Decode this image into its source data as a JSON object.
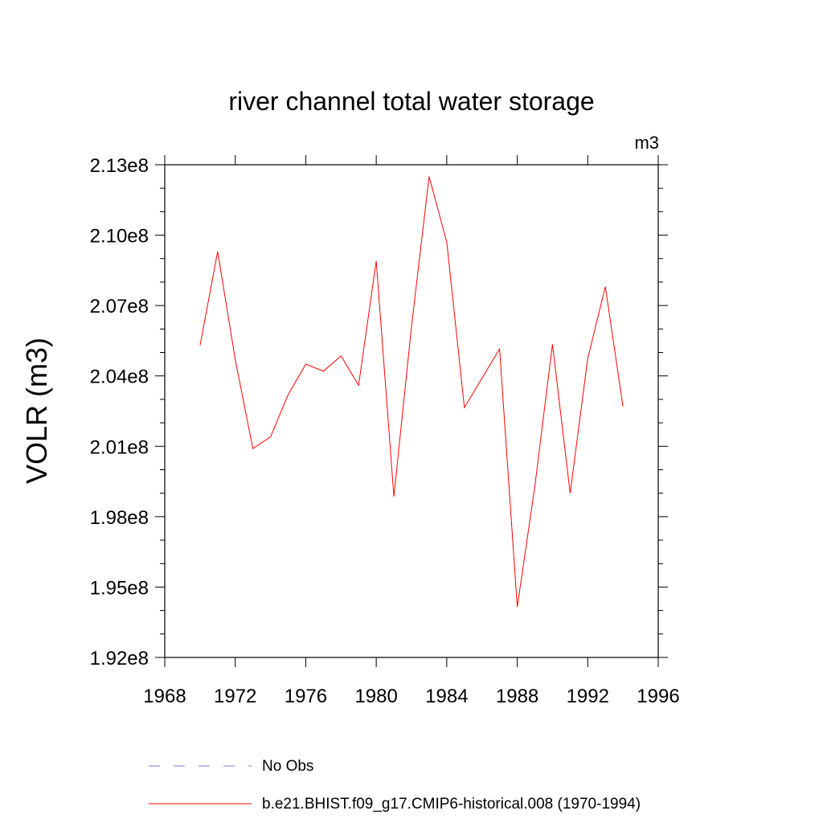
{
  "chart_data": {
    "type": "line",
    "title": "river channel total water storage",
    "units_label": "m3",
    "ylabel": "VOLR  (m3)",
    "xlabel": "",
    "xlim": [
      1968,
      1996
    ],
    "ylim": [
      192000000,
      213000000
    ],
    "x_ticks": [
      1968,
      1972,
      1976,
      1980,
      1984,
      1988,
      1992,
      1996
    ],
    "x_tick_labels": [
      "1968",
      "1972",
      "1976",
      "1980",
      "1984",
      "1988",
      "1992",
      "1996"
    ],
    "y_ticks": [
      192000000,
      195000000,
      198000000,
      201000000,
      204000000,
      207000000,
      210000000,
      213000000
    ],
    "y_tick_labels": [
      "1.92e8",
      "1.95e8",
      "1.98e8",
      "2.01e8",
      "2.04e8",
      "2.07e8",
      "2.10e8",
      "2.13e8"
    ],
    "grid": false,
    "legend_position": "bottom",
    "legend": [
      {
        "name": "No Obs",
        "color": "#7a7acc",
        "style": "dashed"
      },
      {
        "name": "b.e21.BHIST.f09_g17.CMIP6-historical.008 (1970-1994)",
        "color": "#ff0000",
        "style": "solid"
      }
    ],
    "series": [
      {
        "name": "b.e21.BHIST.f09_g17.CMIP6-historical.008 (1970-1994)",
        "color": "#ff0000",
        "x": [
          1970,
          1971,
          1972,
          1973,
          1974,
          1975,
          1976,
          1977,
          1978,
          1979,
          1980,
          1981,
          1982,
          1983,
          1984,
          1985,
          1986,
          1987,
          1988,
          1989,
          1990,
          1991,
          1992,
          1993,
          1994
        ],
        "y": [
          205300000,
          209300000,
          204700000,
          200900000,
          201400000,
          203200000,
          204500000,
          204200000,
          204850000,
          203600000,
          208900000,
          198850000,
          206100000,
          212500000,
          209700000,
          202650000,
          203900000,
          205150000,
          194150000,
          199300000,
          205350000,
          199000000,
          204750000,
          207800000,
          202700000
        ]
      }
    ]
  }
}
